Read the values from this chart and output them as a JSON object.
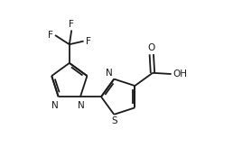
{
  "bg_color": "#ffffff",
  "line_color": "#1a1a1a",
  "line_width": 1.3,
  "font_size": 7.5,
  "figsize": [
    2.58,
    1.64
  ],
  "dpi": 100,
  "xlim": [
    0,
    10.5
  ],
  "ylim": [
    0,
    6.7
  ]
}
